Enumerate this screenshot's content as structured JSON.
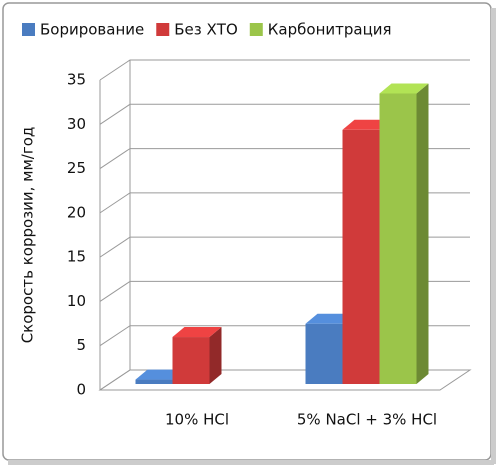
{
  "chart_data": {
    "type": "bar3d",
    "y_label": "Скорость коррозии,  мм/год",
    "categories": [
      "10% HCl",
      "5% NaCl + 3% HCl"
    ],
    "series": [
      {
        "name": "Борирование",
        "color": "#4a7cc0",
        "values": [
          0.5,
          6.8
        ]
      },
      {
        "name": "Без ХТО",
        "color": "#d03a3a",
        "values": [
          5.3,
          28.7
        ]
      },
      {
        "name": "Карбонитрация",
        "color": "#9bc54a",
        "values": [
          0,
          32.8
        ]
      }
    ],
    "ylim": [
      0,
      35
    ],
    "yticks": [
      0,
      5,
      10,
      15,
      20,
      25,
      30,
      35
    ],
    "grid": true,
    "legend": "top"
  }
}
